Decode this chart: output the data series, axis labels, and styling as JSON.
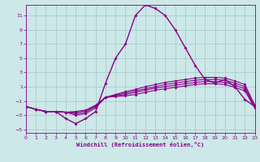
{
  "background_color": "#cce8e8",
  "grid_color": "#aacccc",
  "line_color": "#880088",
  "xlabel": "Windchill (Refroidissement éolien,°C)",
  "xlim": [
    0,
    23
  ],
  "ylim": [
    -5.5,
    12.5
  ],
  "x_ticks": [
    0,
    1,
    2,
    3,
    4,
    5,
    6,
    7,
    8,
    9,
    10,
    11,
    12,
    13,
    14,
    15,
    16,
    17,
    18,
    19,
    20,
    21,
    22,
    23
  ],
  "y_ticks": [
    -5,
    -3,
    -1,
    1,
    3,
    5,
    7,
    9,
    11
  ],
  "series": [
    {
      "y": [
        -1.8,
        -2.2,
        -2.5,
        -2.5,
        -3.5,
        -4.2,
        -3.5,
        -2.5,
        1.5,
        5.0,
        7.0,
        11.0,
        12.5,
        12.0,
        11.0,
        9.0,
        6.5,
        4.0,
        2.0,
        1.5,
        2.0,
        1.0,
        -0.8,
        -1.8
      ],
      "lw": 1.0
    },
    {
      "y": [
        -1.8,
        -2.2,
        -2.5,
        -2.5,
        -2.6,
        -3.0,
        -2.8,
        -2.0,
        -0.5,
        -0.1,
        0.3,
        0.6,
        1.0,
        1.3,
        1.6,
        1.8,
        2.0,
        2.2,
        2.3,
        2.3,
        2.2,
        1.8,
        1.3,
        -1.6
      ],
      "lw": 0.8
    },
    {
      "y": [
        -1.8,
        -2.2,
        -2.5,
        -2.5,
        -2.6,
        -2.8,
        -2.6,
        -1.8,
        -0.5,
        -0.2,
        0.1,
        0.4,
        0.7,
        1.0,
        1.3,
        1.5,
        1.7,
        1.9,
        2.0,
        2.0,
        1.9,
        1.5,
        1.0,
        -1.8
      ],
      "lw": 0.8
    },
    {
      "y": [
        -1.8,
        -2.2,
        -2.5,
        -2.5,
        -2.6,
        -2.6,
        -2.4,
        -1.7,
        -0.5,
        -0.3,
        -0.1,
        0.2,
        0.5,
        0.8,
        1.0,
        1.2,
        1.4,
        1.6,
        1.7,
        1.7,
        1.6,
        1.2,
        0.7,
        -1.9
      ],
      "lw": 0.8
    },
    {
      "y": [
        -1.8,
        -2.2,
        -2.5,
        -2.5,
        -2.6,
        -2.5,
        -2.3,
        -1.6,
        -0.5,
        -0.4,
        -0.3,
        -0.1,
        0.2,
        0.5,
        0.7,
        0.9,
        1.1,
        1.3,
        1.4,
        1.4,
        1.3,
        0.9,
        0.4,
        -2.0
      ],
      "lw": 0.8
    }
  ]
}
